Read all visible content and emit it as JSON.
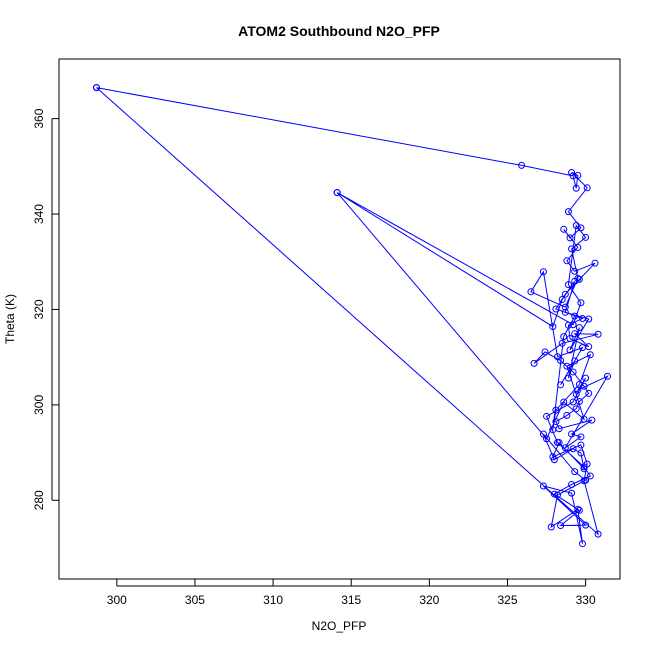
{
  "chart_data": {
    "type": "line",
    "title": "ATOM2 Southbound N2O_PFP",
    "xlabel": "N2O_PFP",
    "ylabel": "Theta (K)",
    "xlim": [
      296.3,
      332.2
    ],
    "ylim": [
      263.5,
      372.5
    ],
    "xticks": [
      300,
      305,
      310,
      315,
      320,
      325,
      330
    ],
    "yticks": [
      280,
      300,
      320,
      340,
      360
    ],
    "grid": false,
    "series": [
      {
        "name": "",
        "color": "#0000ff",
        "marker": "open-circle",
        "x": [
          298.7,
          325.9,
          329.2,
          329.4,
          329.5,
          329.1,
          330.1,
          328.9,
          329.7,
          329.0,
          328.6,
          329.5,
          328.8,
          329.3,
          330.6,
          329.6,
          328.7,
          328.1,
          329.8,
          328.9,
          329.0,
          330.2,
          329.3,
          330.8,
          328.5,
          326.7,
          327.4,
          328.4,
          329.2,
          329.9,
          330.2,
          329.6,
          329.4,
          328.8,
          328.1,
          328.3,
          330.4,
          329.1,
          329.7,
          328.7,
          331.4,
          329.5,
          330.0,
          329.2,
          327.5,
          328.2,
          329.9,
          330.3,
          329.1,
          328.0,
          329.6,
          328.4,
          330.0,
          327.3,
          329.1,
          329.8,
          329.5,
          327.8,
          328.2,
          330.0,
          329.3,
          327.3,
          328.0,
          329.2,
          329.7,
          329.9,
          328.3,
          327.9,
          329.7,
          330.1,
          329.9,
          330.8,
          298.7
        ],
        "y": [
          366.5,
          350.2,
          348.0,
          345.4,
          348.1,
          348.7,
          345.5,
          340.5,
          337.1,
          335.0,
          336.8,
          333.0,
          330.2,
          328.0,
          329.7,
          326.3,
          323.2,
          320.1,
          318.1,
          316.7,
          313.9,
          312.2,
          314.9,
          314.8,
          312.9,
          308.7,
          311.1,
          309.3,
          306.9,
          303.9,
          302.4,
          300.7,
          299.2,
          297.8,
          296.5,
          295.0,
          296.8,
          293.9,
          293.3,
          291.0,
          306.0,
          303.1,
          305.6,
          300.6,
          297.6,
          292.1,
          287.0,
          285.1,
          283.3,
          281.3,
          277.9,
          274.7,
          274.8,
          283.0,
          281.5,
          270.9,
          278.1,
          274.4,
          281.1,
          284.2,
          286.0,
          293.9,
          288.5,
          290.8,
          289.9,
          286.6,
          292.1,
          289.1,
          291.6,
          287.6,
          284.1,
          272.9,
          366.5
        ]
      },
      {
        "name": "",
        "color": "#0000ff",
        "marker": "open-circle",
        "x": [
          314.1,
          327.9,
          328.5,
          329.3,
          328.7,
          330.2,
          329.0,
          329.6,
          328.9,
          329.3,
          328.4,
          329.8,
          328.2,
          327.3,
          326.5,
          328.7,
          329.5,
          329.1,
          330.0,
          329.4,
          328.9,
          329.7,
          329.2,
          314.1,
          327.5,
          328.6,
          329.9,
          329.4,
          328.8,
          330.3,
          329.6,
          328.1,
          327.9,
          328.6,
          329.3
        ],
        "y": [
          344.5,
          316.4,
          322.1,
          325.9,
          319.4,
          318.0,
          311.5,
          316.2,
          305.6,
          309.2,
          304.2,
          312.0,
          310.1,
          327.9,
          323.7,
          320.5,
          326.5,
          332.7,
          335.1,
          337.6,
          325.2,
          321.4,
          316.8,
          344.5,
          292.9,
          300.6,
          297.0,
          302.2,
          308.1,
          310.5,
          304.3,
          298.9,
          294.8,
          314.3,
          318.6
        ]
      }
    ]
  }
}
